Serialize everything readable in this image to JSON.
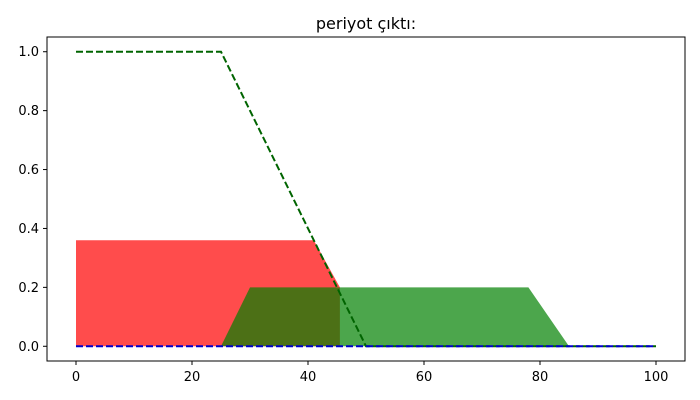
{
  "chart_data": {
    "type": "area",
    "title": "periyot çıktı:",
    "xlabel": "",
    "ylabel": "",
    "xlim": [
      -5,
      105
    ],
    "ylim": [
      -0.05,
      1.05
    ],
    "x_ticks": [
      0,
      20,
      40,
      60,
      80,
      100
    ],
    "y_ticks": [
      0.0,
      0.2,
      0.4,
      0.6,
      0.8,
      1.0
    ],
    "x_tick_labels": [
      "0",
      "20",
      "40",
      "60",
      "80",
      "100"
    ],
    "y_tick_labels": [
      "0.0",
      "0.2",
      "0.4",
      "0.6",
      "0.8",
      "1.0"
    ],
    "grid": false,
    "legend": "none",
    "filled_areas": [
      {
        "color": "#ff0000",
        "opacity": 0.7,
        "x": [
          0,
          41,
          45.5,
          45.5,
          0
        ],
        "y": [
          0.36,
          0.36,
          0.2,
          0,
          0
        ]
      },
      {
        "color": "#008000",
        "opacity": 0.7,
        "x": [
          25,
          30,
          78,
          85,
          25
        ],
        "y": [
          0,
          0.2,
          0.2,
          0,
          0
        ]
      }
    ],
    "series": [
      {
        "style": "dashed",
        "color": "#006400",
        "x": [
          0,
          25,
          50,
          100
        ],
        "y": [
          1,
          1,
          0,
          0
        ]
      },
      {
        "style": "dashed",
        "color": "#0000cc",
        "x": [
          0,
          100
        ],
        "y": [
          0,
          0
        ]
      }
    ]
  }
}
